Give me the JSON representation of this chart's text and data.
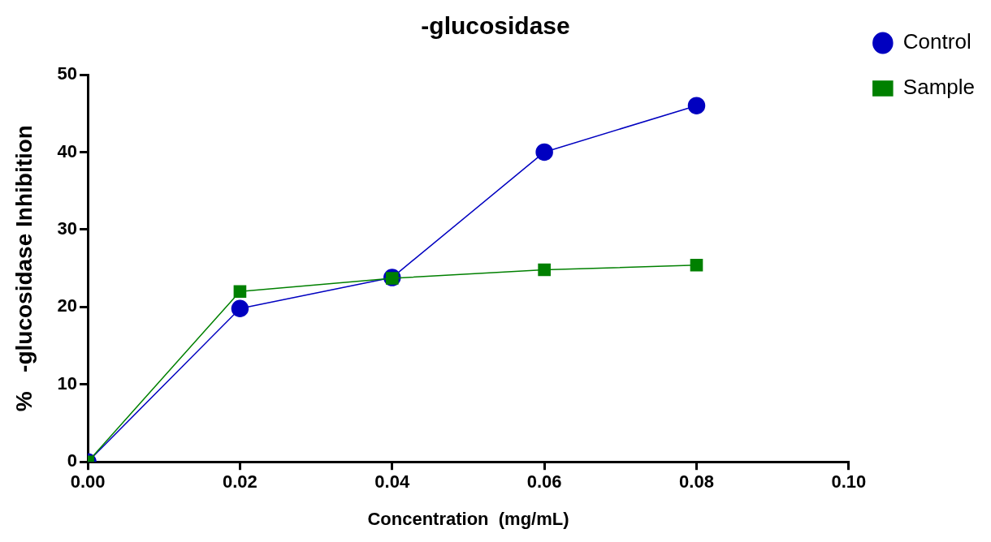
{
  "chart_data": {
    "type": "line",
    "title": "-glucosidase",
    "xlabel": "Concentration  (mg/mL)",
    "ylabel": "%   -glucosidase Inhibition",
    "x": [
      0,
      0.02,
      0.04,
      0.06,
      0.08
    ],
    "series": [
      {
        "name": "Control",
        "color": "#0000c0",
        "marker": "circle",
        "values": [
          0,
          19.8,
          23.8,
          40,
          46
        ]
      },
      {
        "name": "Sample",
        "color": "#008000",
        "marker": "square",
        "values": [
          0,
          22,
          23.7,
          24.8,
          25.4
        ]
      }
    ],
    "xlim": [
      0,
      0.1
    ],
    "xticks": [
      {
        "value": 0,
        "label": "0.00"
      },
      {
        "value": 0.02,
        "label": "0.02"
      },
      {
        "value": 0.04,
        "label": "0.04"
      },
      {
        "value": 0.06,
        "label": "0.06"
      },
      {
        "value": 0.08,
        "label": "0.08"
      },
      {
        "value": 0.1,
        "label": "0.10"
      }
    ],
    "ylim": [
      0,
      50
    ],
    "yticks": [
      0,
      10,
      20,
      30,
      40,
      50
    ],
    "grid": false,
    "legend": "top right",
    "line_style": "solid"
  }
}
